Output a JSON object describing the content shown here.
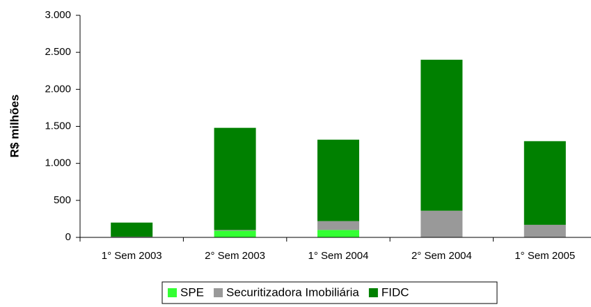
{
  "chart_data": {
    "type": "stacked-bar",
    "y_label": "R$ milhões",
    "categories": [
      "1° Sem 2003",
      "2° Sem 2003",
      "1° Sem 2004",
      "2° Sem 2004",
      "1° Sem 2005"
    ],
    "series": [
      {
        "name": "SPE",
        "color": "#33ff33",
        "values": [
          0,
          90,
          100,
          0,
          0
        ]
      },
      {
        "name": "Securitizadora Imobiliária",
        "color": "#999999",
        "values": [
          10,
          10,
          120,
          360,
          170
        ]
      },
      {
        "name": "FIDC",
        "color": "#008000",
        "values": [
          190,
          1380,
          1100,
          2040,
          1130
        ]
      }
    ],
    "ylim": [
      0,
      3000
    ],
    "yticks": [
      0,
      500,
      {
        "value": 1000,
        "label": "1.000"
      },
      {
        "value": 1500,
        "label": "1.500"
      },
      {
        "value": 2000,
        "label": "2.000"
      },
      {
        "value": 2500,
        "label": "2.500"
      },
      {
        "value": 3000,
        "label": "3.000"
      }
    ],
    "legend": "bottom"
  }
}
